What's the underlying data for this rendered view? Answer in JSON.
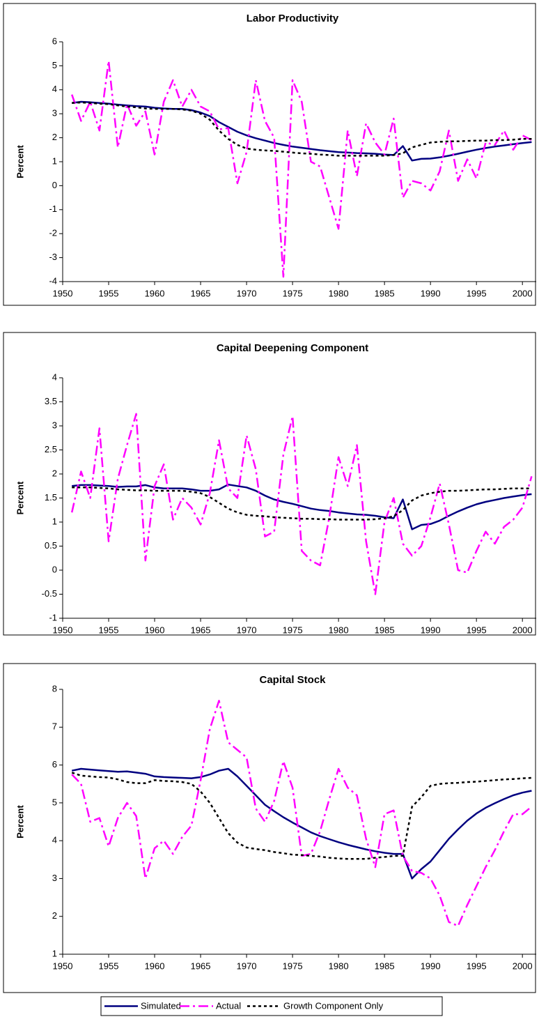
{
  "chart_data": [
    {
      "type": "line",
      "title": "Labor Productivity",
      "ylabel": "Percent",
      "x": [
        1951,
        1952,
        1953,
        1954,
        1955,
        1956,
        1957,
        1958,
        1959,
        1960,
        1961,
        1962,
        1963,
        1964,
        1965,
        1966,
        1967,
        1968,
        1969,
        1970,
        1971,
        1972,
        1973,
        1974,
        1975,
        1976,
        1977,
        1978,
        1979,
        1980,
        1981,
        1982,
        1983,
        1984,
        1985,
        1986,
        1987,
        1988,
        1989,
        1990,
        1991,
        1992,
        1993,
        1994,
        1995,
        1996,
        1997,
        1998,
        1999,
        2000,
        2001
      ],
      "xlim": [
        1950,
        2001.5
      ],
      "xticks": [
        1950,
        1955,
        1960,
        1965,
        1970,
        1975,
        1980,
        1985,
        1990,
        1995,
        2000
      ],
      "ylim": [
        -4,
        6
      ],
      "yticks": [
        -4,
        -3,
        -2,
        -1,
        0,
        1,
        2,
        3,
        4,
        5,
        6
      ],
      "grid": false,
      "series": [
        {
          "name": "Simulated",
          "color": "#000080",
          "line_style": "solid",
          "values": [
            3.45,
            3.5,
            3.48,
            3.45,
            3.42,
            3.38,
            3.35,
            3.32,
            3.3,
            3.25,
            3.22,
            3.2,
            3.2,
            3.15,
            3.05,
            2.9,
            2.65,
            2.45,
            2.25,
            2.1,
            1.98,
            1.88,
            1.78,
            1.7,
            1.63,
            1.58,
            1.53,
            1.48,
            1.44,
            1.4,
            1.38,
            1.36,
            1.35,
            1.33,
            1.3,
            1.28,
            1.65,
            1.05,
            1.12,
            1.13,
            1.18,
            1.25,
            1.33,
            1.42,
            1.5,
            1.57,
            1.63,
            1.68,
            1.73,
            1.78,
            1.82
          ]
        },
        {
          "name": "Actual",
          "color": "#ff00ff",
          "line_style": "dashdot",
          "values": [
            3.8,
            2.7,
            3.5,
            2.3,
            5.2,
            1.6,
            3.4,
            2.5,
            3.1,
            1.3,
            3.5,
            4.4,
            3.3,
            4.0,
            3.3,
            3.1,
            2.35,
            2.4,
            0.1,
            1.4,
            4.4,
            2.7,
            2.0,
            -3.8,
            4.4,
            3.5,
            1.0,
            0.8,
            -0.5,
            -1.8,
            2.3,
            0.4,
            2.6,
            1.8,
            1.3,
            2.8,
            -0.5,
            0.2,
            0.1,
            -0.2,
            0.6,
            2.3,
            0.2,
            1.1,
            0.3,
            1.8,
            1.7,
            2.3,
            1.5,
            2.1,
            1.9
          ]
        },
        {
          "name": "Growth Component Only",
          "color": "#000000",
          "line_style": "dotted",
          "values": [
            3.45,
            3.47,
            3.45,
            3.42,
            3.4,
            3.35,
            3.3,
            3.27,
            3.22,
            3.2,
            3.2,
            3.2,
            3.18,
            3.13,
            3.0,
            2.75,
            2.3,
            1.95,
            1.7,
            1.55,
            1.5,
            1.47,
            1.45,
            1.42,
            1.38,
            1.35,
            1.33,
            1.3,
            1.28,
            1.25,
            1.25,
            1.25,
            1.25,
            1.25,
            1.25,
            1.28,
            1.35,
            1.6,
            1.7,
            1.8,
            1.83,
            1.85,
            1.85,
            1.87,
            1.88,
            1.88,
            1.9,
            1.9,
            1.92,
            1.95,
            1.95
          ]
        }
      ]
    },
    {
      "type": "line",
      "title": "Capital Deepening Component",
      "ylabel": "Percent",
      "x": [
        1951,
        1952,
        1953,
        1954,
        1955,
        1956,
        1957,
        1958,
        1959,
        1960,
        1961,
        1962,
        1963,
        1964,
        1965,
        1966,
        1967,
        1968,
        1969,
        1970,
        1971,
        1972,
        1973,
        1974,
        1975,
        1976,
        1977,
        1978,
        1979,
        1980,
        1981,
        1982,
        1983,
        1984,
        1985,
        1986,
        1987,
        1988,
        1989,
        1990,
        1991,
        1992,
        1993,
        1994,
        1995,
        1996,
        1997,
        1998,
        1999,
        2000,
        2001
      ],
      "xlim": [
        1950,
        2001.5
      ],
      "xticks": [
        1950,
        1955,
        1960,
        1965,
        1970,
        1975,
        1980,
        1985,
        1990,
        1995,
        2000
      ],
      "ylim": [
        -1,
        4
      ],
      "yticks": [
        -1,
        -0.5,
        0,
        0.5,
        1,
        1.5,
        2,
        2.5,
        3,
        3.5,
        4
      ],
      "grid": false,
      "series": [
        {
          "name": "Simulated",
          "color": "#000080",
          "line_style": "solid",
          "values": [
            1.75,
            1.77,
            1.77,
            1.76,
            1.75,
            1.73,
            1.74,
            1.74,
            1.77,
            1.72,
            1.7,
            1.7,
            1.7,
            1.68,
            1.65,
            1.65,
            1.68,
            1.78,
            1.75,
            1.72,
            1.65,
            1.55,
            1.47,
            1.42,
            1.38,
            1.33,
            1.28,
            1.25,
            1.23,
            1.2,
            1.18,
            1.16,
            1.15,
            1.13,
            1.1,
            1.08,
            1.47,
            0.85,
            0.94,
            0.96,
            1.03,
            1.13,
            1.22,
            1.3,
            1.37,
            1.42,
            1.46,
            1.5,
            1.53,
            1.56,
            1.58
          ]
        },
        {
          "name": "Actual",
          "color": "#ff00ff",
          "line_style": "dashdot",
          "values": [
            1.2,
            2.05,
            1.5,
            2.95,
            0.6,
            1.9,
            2.6,
            3.25,
            0.2,
            1.75,
            2.2,
            1.05,
            1.5,
            1.3,
            0.95,
            1.6,
            2.7,
            1.7,
            1.5,
            2.8,
            2.1,
            0.7,
            0.8,
            2.4,
            3.2,
            0.4,
            0.2,
            0.1,
            1.1,
            2.35,
            1.75,
            2.6,
            0.6,
            -0.5,
            1.0,
            1.5,
            0.55,
            0.3,
            0.5,
            1.1,
            1.8,
            0.95,
            0.0,
            -0.05,
            0.4,
            0.8,
            0.55,
            0.9,
            1.05,
            1.3,
            1.95
          ]
        },
        {
          "name": "Growth Component Only",
          "color": "#000000",
          "line_style": "dotted",
          "values": [
            1.72,
            1.72,
            1.72,
            1.71,
            1.7,
            1.68,
            1.67,
            1.66,
            1.66,
            1.65,
            1.65,
            1.65,
            1.65,
            1.63,
            1.6,
            1.52,
            1.4,
            1.28,
            1.2,
            1.15,
            1.13,
            1.12,
            1.1,
            1.09,
            1.08,
            1.07,
            1.07,
            1.06,
            1.06,
            1.05,
            1.05,
            1.05,
            1.05,
            1.06,
            1.08,
            1.12,
            1.25,
            1.45,
            1.55,
            1.6,
            1.63,
            1.65,
            1.65,
            1.66,
            1.67,
            1.68,
            1.68,
            1.69,
            1.7,
            1.7,
            1.7
          ]
        }
      ]
    },
    {
      "type": "line",
      "title": "Capital Stock",
      "ylabel": "Percent",
      "x": [
        1951,
        1952,
        1953,
        1954,
        1955,
        1956,
        1957,
        1958,
        1959,
        1960,
        1961,
        1962,
        1963,
        1964,
        1965,
        1966,
        1967,
        1968,
        1969,
        1970,
        1971,
        1972,
        1973,
        1974,
        1975,
        1976,
        1977,
        1978,
        1979,
        1980,
        1981,
        1982,
        1983,
        1984,
        1985,
        1986,
        1987,
        1988,
        1989,
        1990,
        1991,
        1992,
        1993,
        1994,
        1995,
        1996,
        1997,
        1998,
        1999,
        2000,
        2001
      ],
      "xlim": [
        1950,
        2001.5
      ],
      "xticks": [
        1950,
        1955,
        1960,
        1965,
        1970,
        1975,
        1980,
        1985,
        1990,
        1995,
        2000
      ],
      "ylim": [
        1,
        8
      ],
      "yticks": [
        1,
        2,
        3,
        4,
        5,
        6,
        7,
        8
      ],
      "grid": false,
      "series": [
        {
          "name": "Simulated",
          "color": "#000080",
          "line_style": "solid",
          "values": [
            5.85,
            5.9,
            5.88,
            5.86,
            5.84,
            5.82,
            5.83,
            5.8,
            5.77,
            5.7,
            5.68,
            5.67,
            5.66,
            5.65,
            5.68,
            5.75,
            5.85,
            5.9,
            5.7,
            5.45,
            5.2,
            4.95,
            4.78,
            4.62,
            4.48,
            4.35,
            4.22,
            4.12,
            4.04,
            3.96,
            3.89,
            3.83,
            3.77,
            3.72,
            3.68,
            3.65,
            3.65,
            3.0,
            3.25,
            3.45,
            3.75,
            4.05,
            4.3,
            4.53,
            4.72,
            4.87,
            4.99,
            5.1,
            5.2,
            5.27,
            5.32
          ]
        },
        {
          "name": "Actual",
          "color": "#ff00ff",
          "line_style": "dashdot",
          "values": [
            5.75,
            5.5,
            4.5,
            4.6,
            3.85,
            4.6,
            5.0,
            4.65,
            3.0,
            3.8,
            4.0,
            3.65,
            4.1,
            4.4,
            5.6,
            6.95,
            7.7,
            6.6,
            6.4,
            6.2,
            4.85,
            4.5,
            5.05,
            6.1,
            5.4,
            3.6,
            3.65,
            4.25,
            5.1,
            5.9,
            5.4,
            5.2,
            4.05,
            3.3,
            4.7,
            4.8,
            3.6,
            3.2,
            3.15,
            3.0,
            2.55,
            1.85,
            1.75,
            2.3,
            2.8,
            3.3,
            3.75,
            4.25,
            4.7,
            4.7,
            4.9
          ]
        },
        {
          "name": "Growth Component Only",
          "color": "#000000",
          "line_style": "dotted",
          "values": [
            5.8,
            5.72,
            5.7,
            5.68,
            5.67,
            5.62,
            5.55,
            5.52,
            5.52,
            5.6,
            5.58,
            5.57,
            5.55,
            5.5,
            5.3,
            5.0,
            4.6,
            4.2,
            3.95,
            3.82,
            3.78,
            3.75,
            3.7,
            3.67,
            3.63,
            3.62,
            3.6,
            3.58,
            3.55,
            3.53,
            3.52,
            3.52,
            3.52,
            3.55,
            3.57,
            3.6,
            3.6,
            4.9,
            5.15,
            5.45,
            5.5,
            5.52,
            5.53,
            5.55,
            5.56,
            5.58,
            5.6,
            5.62,
            5.63,
            5.65,
            5.66
          ]
        }
      ]
    }
  ]
}
